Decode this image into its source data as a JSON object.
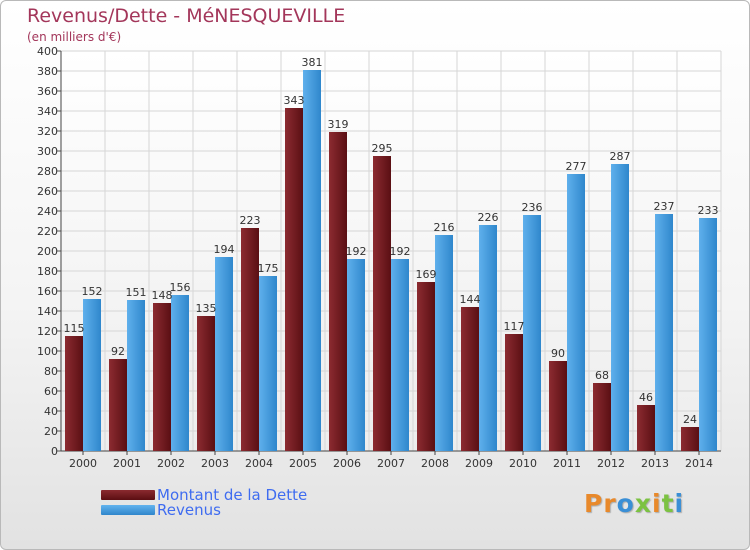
{
  "header": {
    "title": "Revenus/Dette - MéNESQUEVILLE",
    "subtitle": "(en milliers d'€)"
  },
  "legend": {
    "debt_label": "Montant de la Dette",
    "revenue_label": "Revenus"
  },
  "logo": {
    "text": "Proxiti"
  },
  "colors": {
    "title": "#a3365a",
    "debt": "#6e1a1f",
    "revenue": "#3a96dd",
    "legend_text": "#3f6cf0"
  },
  "chart_data": {
    "type": "bar",
    "categories": [
      "2000",
      "2001",
      "2002",
      "2003",
      "2004",
      "2005",
      "2006",
      "2007",
      "2008",
      "2009",
      "2010",
      "2011",
      "2012",
      "2013",
      "2014"
    ],
    "series": [
      {
        "name": "Montant de la Dette",
        "values": [
          115,
          92,
          148,
          135,
          223,
          343,
          319,
          295,
          169,
          144,
          117,
          90,
          68,
          46,
          24
        ]
      },
      {
        "name": "Revenus",
        "values": [
          152,
          151,
          156,
          194,
          175,
          381,
          192,
          192,
          216,
          226,
          236,
          277,
          287,
          237,
          233
        ]
      }
    ],
    "ylim": [
      0,
      400
    ],
    "ytick_step": 20,
    "grid": true,
    "legend_position": "bottom-left"
  }
}
